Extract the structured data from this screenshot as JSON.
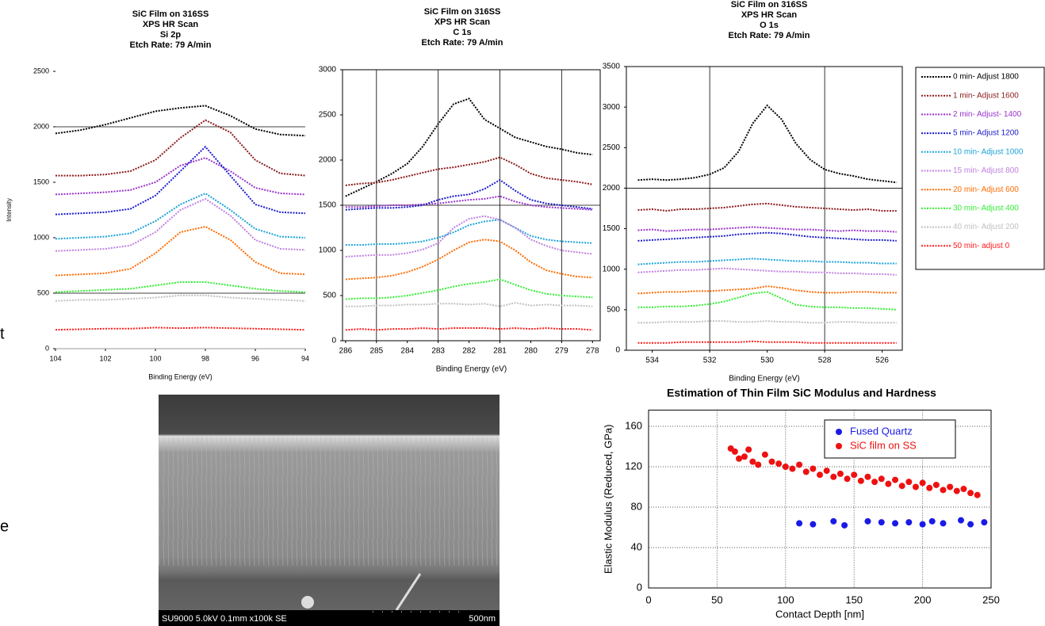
{
  "page_text": [
    "t",
    "e"
  ],
  "image": {
    "caption": "SU9000 5.0kV 0.1mm x100k SE",
    "scale_label": "500nm"
  },
  "chart_data": [
    {
      "type": "line",
      "title": [
        "SiC Film on 316SS",
        "XPS HR Scan",
        "Si 2p",
        "Etch Rate: 79 A/min"
      ],
      "x_label": "Binding Energy (eV)",
      "y_label": "Intensity",
      "frame": false,
      "xlim": [
        104,
        94
      ],
      "xticks": [
        104,
        102,
        100,
        98,
        96,
        94
      ],
      "ylim": [
        0,
        2500
      ],
      "yticks": [
        0,
        500,
        1000,
        1500,
        2000,
        2500
      ],
      "hlines": [
        2000,
        500
      ],
      "vlines": [],
      "x": [
        104,
        103,
        102,
        101,
        100,
        99,
        98,
        97,
        96,
        95,
        94
      ],
      "series": [
        {
          "color": "#000000",
          "values": [
            1940,
            1970,
            2020,
            2080,
            2140,
            2170,
            2190,
            2100,
            1980,
            1930,
            1920
          ]
        },
        {
          "color": "#8b1a1a",
          "values": [
            1560,
            1560,
            1570,
            1600,
            1700,
            1900,
            2060,
            1950,
            1700,
            1580,
            1560
          ]
        },
        {
          "color": "#9933cc",
          "values": [
            1390,
            1400,
            1410,
            1430,
            1500,
            1650,
            1720,
            1600,
            1450,
            1400,
            1390
          ]
        },
        {
          "color": "#1a1acc",
          "values": [
            1210,
            1220,
            1230,
            1260,
            1380,
            1600,
            1820,
            1560,
            1300,
            1230,
            1220
          ]
        },
        {
          "color": "#1aa3d9",
          "values": [
            990,
            1000,
            1010,
            1040,
            1150,
            1300,
            1400,
            1250,
            1080,
            1010,
            1000
          ]
        },
        {
          "color": "#c080e0",
          "values": [
            880,
            890,
            900,
            930,
            1050,
            1250,
            1350,
            1200,
            980,
            900,
            890
          ]
        },
        {
          "color": "#ff6a00",
          "values": [
            660,
            670,
            680,
            720,
            860,
            1050,
            1100,
            980,
            780,
            680,
            670
          ]
        },
        {
          "color": "#33ee33",
          "values": [
            510,
            520,
            530,
            540,
            570,
            600,
            600,
            570,
            540,
            520,
            510
          ]
        },
        {
          "color": "#c0c0c0",
          "values": [
            430,
            440,
            440,
            450,
            460,
            480,
            480,
            460,
            450,
            440,
            430
          ]
        },
        {
          "color": "#ff1a1a",
          "values": [
            170,
            175,
            180,
            180,
            190,
            185,
            190,
            185,
            180,
            175,
            170
          ]
        }
      ]
    },
    {
      "type": "line",
      "title": [
        "SiC Film on 316SS",
        "XPS HR Scan",
        "C 1s",
        "Etch Rate: 79 A/min"
      ],
      "x_label": "Binding Energy (eV)",
      "frame": true,
      "xlim": [
        286.1,
        277.75
      ],
      "xticks": [
        286,
        285,
        284,
        283,
        282,
        281,
        280,
        279,
        278
      ],
      "ylim": [
        0,
        3000
      ],
      "yticks": [
        0,
        500,
        1000,
        1500,
        2000,
        2500,
        3000
      ],
      "hlines": [
        1500
      ],
      "vlines": [
        285,
        283,
        281,
        279
      ],
      "x": [
        286,
        285.5,
        285,
        284.5,
        284,
        283.5,
        283,
        282.5,
        282,
        281.5,
        281,
        280.5,
        280,
        279.5,
        279,
        278.5,
        278
      ],
      "series": [
        {
          "color": "#000000",
          "values": [
            1600,
            1680,
            1760,
            1850,
            1960,
            2150,
            2400,
            2620,
            2680,
            2450,
            2350,
            2250,
            2200,
            2150,
            2120,
            2080,
            2060
          ]
        },
        {
          "color": "#8b1a1a",
          "values": [
            1720,
            1740,
            1750,
            1780,
            1820,
            1860,
            1900,
            1920,
            1950,
            1980,
            2030,
            1950,
            1850,
            1800,
            1780,
            1760,
            1730
          ]
        },
        {
          "color": "#9933cc",
          "values": [
            1480,
            1480,
            1490,
            1500,
            1500,
            1510,
            1520,
            1540,
            1560,
            1570,
            1600,
            1540,
            1500,
            1480,
            1470,
            1460,
            1450
          ]
        },
        {
          "color": "#1a1acc",
          "values": [
            1450,
            1460,
            1470,
            1470,
            1480,
            1500,
            1560,
            1600,
            1620,
            1680,
            1780,
            1660,
            1560,
            1520,
            1500,
            1480,
            1460
          ]
        },
        {
          "color": "#1aa3d9",
          "values": [
            1060,
            1060,
            1070,
            1070,
            1080,
            1100,
            1140,
            1200,
            1280,
            1320,
            1340,
            1250,
            1160,
            1120,
            1100,
            1090,
            1080
          ]
        },
        {
          "color": "#c080e0",
          "values": [
            930,
            940,
            950,
            950,
            970,
            1010,
            1080,
            1250,
            1350,
            1380,
            1340,
            1250,
            1120,
            1050,
            1000,
            980,
            960
          ]
        },
        {
          "color": "#ff6a00",
          "values": [
            680,
            690,
            700,
            720,
            760,
            820,
            900,
            1000,
            1090,
            1120,
            1100,
            1000,
            870,
            780,
            740,
            710,
            700
          ]
        },
        {
          "color": "#33ee33",
          "values": [
            460,
            470,
            470,
            480,
            500,
            530,
            560,
            600,
            630,
            650,
            680,
            620,
            560,
            520,
            500,
            490,
            480
          ]
        },
        {
          "color": "#c0c0c0",
          "values": [
            380,
            380,
            390,
            390,
            400,
            400,
            410,
            410,
            400,
            410,
            380,
            420,
            390,
            400,
            390,
            390,
            380
          ]
        },
        {
          "color": "#ff1a1a",
          "values": [
            120,
            130,
            120,
            130,
            130,
            140,
            130,
            140,
            140,
            140,
            130,
            140,
            130,
            140,
            130,
            130,
            120
          ]
        }
      ]
    },
    {
      "type": "line",
      "title": [
        "SiC Film on 316SS",
        "XPS HR Scan",
        "O 1s",
        "Etch Rate: 79 A/min"
      ],
      "x_label": "Binding Energy (eV)",
      "frame": true,
      "legend": "outside right",
      "xlim": [
        534.9,
        525.3
      ],
      "xticks": [
        534,
        532,
        530,
        528,
        526
      ],
      "ylim": [
        0,
        3500
      ],
      "yticks": [
        0,
        500,
        1000,
        1500,
        2000,
        2500,
        3000,
        3500
      ],
      "hlines": [
        2000
      ],
      "vlines": [
        532,
        528
      ],
      "x": [
        534.5,
        534,
        533.5,
        533,
        532.5,
        532,
        531.5,
        531,
        530.5,
        530,
        529.5,
        529,
        528.5,
        528,
        527.5,
        527,
        526.5,
        526,
        525.5
      ],
      "series": [
        {
          "name": "0 min- Adjust 1800",
          "color": "#000000",
          "values": [
            2100,
            2110,
            2100,
            2110,
            2130,
            2170,
            2250,
            2450,
            2800,
            3020,
            2850,
            2550,
            2350,
            2230,
            2180,
            2150,
            2110,
            2090,
            2070
          ]
        },
        {
          "name": "1 min- Adjust 1600",
          "color": "#8b1a1a",
          "values": [
            1730,
            1740,
            1720,
            1740,
            1740,
            1750,
            1760,
            1780,
            1800,
            1810,
            1790,
            1770,
            1760,
            1750,
            1740,
            1730,
            1740,
            1720,
            1720
          ]
        },
        {
          "name": "2 min- Adjust- 1400",
          "color": "#9933cc",
          "values": [
            1480,
            1490,
            1470,
            1480,
            1490,
            1490,
            1500,
            1510,
            1520,
            1510,
            1500,
            1490,
            1490,
            1480,
            1470,
            1480,
            1470,
            1470,
            1460
          ]
        },
        {
          "name": "5 min- Adjust 1200",
          "color": "#1a1acc",
          "values": [
            1350,
            1360,
            1370,
            1380,
            1390,
            1400,
            1410,
            1430,
            1440,
            1450,
            1440,
            1420,
            1400,
            1390,
            1380,
            1370,
            1360,
            1360,
            1350
          ]
        },
        {
          "name": "10 min- Adjust 1000",
          "color": "#1aa3d9",
          "values": [
            1060,
            1070,
            1080,
            1090,
            1090,
            1100,
            1110,
            1120,
            1130,
            1120,
            1110,
            1100,
            1100,
            1090,
            1090,
            1080,
            1080,
            1070,
            1070
          ]
        },
        {
          "name": "15 min- Adjust 800",
          "color": "#c080e0",
          "values": [
            960,
            970,
            980,
            990,
            990,
            1000,
            1010,
            1000,
            990,
            980,
            970,
            970,
            960,
            960,
            950,
            950,
            940,
            940,
            930
          ]
        },
        {
          "name": "20 min- Adjust 600",
          "color": "#ff6a00",
          "values": [
            700,
            710,
            720,
            720,
            730,
            730,
            740,
            750,
            760,
            790,
            770,
            740,
            720,
            710,
            710,
            720,
            720,
            710,
            710
          ]
        },
        {
          "name": "30 min- Adjust 400",
          "color": "#33ee33",
          "values": [
            530,
            530,
            540,
            540,
            550,
            570,
            600,
            650,
            700,
            720,
            640,
            560,
            540,
            530,
            530,
            520,
            520,
            510,
            500
          ]
        },
        {
          "name": "40 min- Adjust 200",
          "color": "#c0c0c0",
          "values": [
            340,
            340,
            350,
            350,
            350,
            360,
            360,
            350,
            350,
            360,
            350,
            350,
            340,
            340,
            350,
            350,
            340,
            340,
            340
          ]
        },
        {
          "name": "50 min- adjust 0",
          "color": "#ff1a1a",
          "values": [
            90,
            90,
            90,
            100,
            100,
            100,
            100,
            100,
            110,
            100,
            100,
            100,
            90,
            90,
            90,
            90,
            90,
            90,
            90
          ]
        }
      ]
    },
    {
      "type": "scatter",
      "title": [
        "Estimation of Thin Film SiC Modulus and Hardness"
      ],
      "x_label": "Contact Depth [nm]",
      "y_label": "Elastic Modulus (Reduced, GPa)",
      "grid": true,
      "frame": true,
      "legend": "upper right",
      "xlim": [
        0,
        250
      ],
      "xticks": [
        0,
        50,
        100,
        150,
        200,
        250
      ],
      "ylim": [
        0,
        176
      ],
      "yticks": [
        0,
        40,
        80,
        120,
        160
      ],
      "series": [
        {
          "name": "Fused Quartz",
          "color": "#1a1ae6",
          "x": [
            110,
            120,
            135,
            143,
            160,
            170,
            180,
            190,
            200,
            207,
            215,
            228,
            235,
            245
          ],
          "values": [
            64,
            63,
            66,
            62,
            66,
            65,
            64,
            65,
            63,
            66,
            64,
            67,
            63,
            65
          ]
        },
        {
          "name": "SiC film on SS",
          "color": "#ee1111",
          "x": [
            60,
            63,
            66,
            70,
            73,
            76,
            80,
            85,
            90,
            95,
            100,
            105,
            110,
            115,
            120,
            125,
            130,
            135,
            140,
            145,
            150,
            155,
            160,
            165,
            170,
            175,
            180,
            185,
            190,
            195,
            200,
            205,
            210,
            215,
            220,
            225,
            230,
            235,
            240
          ],
          "values": [
            138,
            135,
            128,
            130,
            137,
            125,
            122,
            132,
            125,
            123,
            120,
            118,
            122,
            115,
            118,
            112,
            116,
            110,
            113,
            108,
            112,
            106,
            110,
            105,
            108,
            103,
            107,
            101,
            105,
            100,
            104,
            99,
            102,
            97,
            100,
            96,
            98,
            94,
            92
          ]
        }
      ]
    }
  ]
}
